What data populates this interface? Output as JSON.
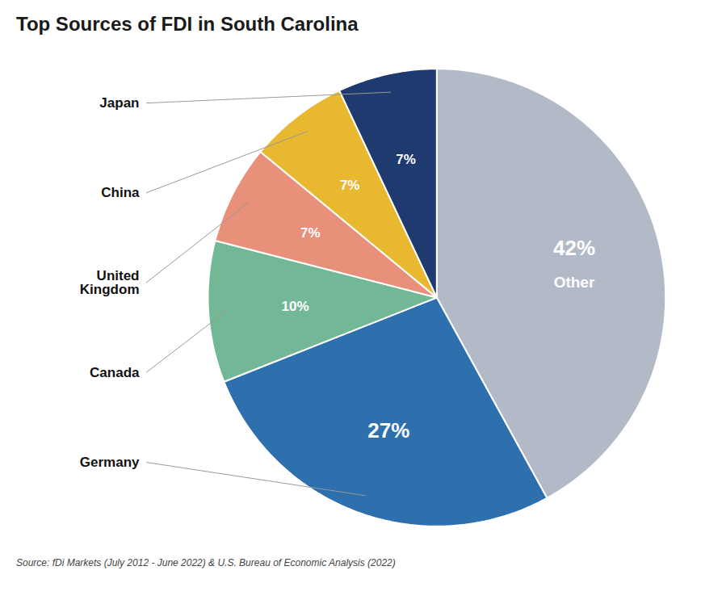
{
  "chart_data": {
    "type": "pie",
    "title": "Top Sources of FDI in South Carolina",
    "caption": "Source: fDi Markets (July 2012 - June 2022) & U.S. Bureau of Economic Analysis (2022)",
    "categories": [
      "Other",
      "Germany",
      "Canada",
      "United\nKingdom",
      "China",
      "Japan"
    ],
    "values": [
      42,
      27,
      10,
      7,
      7,
      7
    ],
    "value_labels": [
      "42%",
      "27%",
      "10%",
      "7%",
      "7%",
      "7%"
    ],
    "colors": [
      "#b2bac8",
      "#2e6fad",
      "#72b896",
      "#e8907a",
      "#e8b830",
      "#1e3a6e"
    ],
    "data_labels": true
  }
}
